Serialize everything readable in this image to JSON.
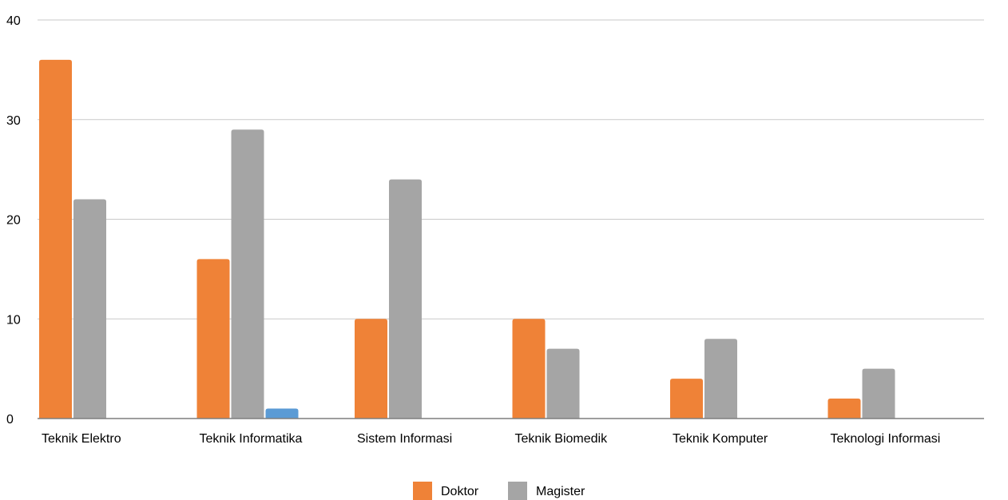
{
  "chart_data": {
    "type": "bar",
    "title": "",
    "xlabel": "",
    "ylabel": "",
    "categories": [
      "Teknik Elektro",
      "Teknik Informatika",
      "Sistem Informasi",
      "Teknik Biomedik",
      "Teknik Komputer",
      "Teknologi Informasi"
    ],
    "series": [
      {
        "name": "Doktor",
        "color": "#EF8237",
        "values": [
          36,
          16,
          10,
          10,
          4,
          2
        ]
      },
      {
        "name": "Magister",
        "color": "#A5A5A5",
        "values": [
          22,
          29,
          24,
          7,
          8,
          5
        ]
      },
      {
        "color": "#5B9BD5",
        "values": [
          0,
          1,
          0,
          0,
          0,
          0
        ]
      }
    ],
    "ylim": [
      0,
      40
    ],
    "yticks": [
      0,
      10,
      20,
      30,
      40
    ],
    "grid": true,
    "legend_position": "bottom",
    "gridline_color": "#C9C9C9",
    "axis_color": "#7F7F7F"
  }
}
